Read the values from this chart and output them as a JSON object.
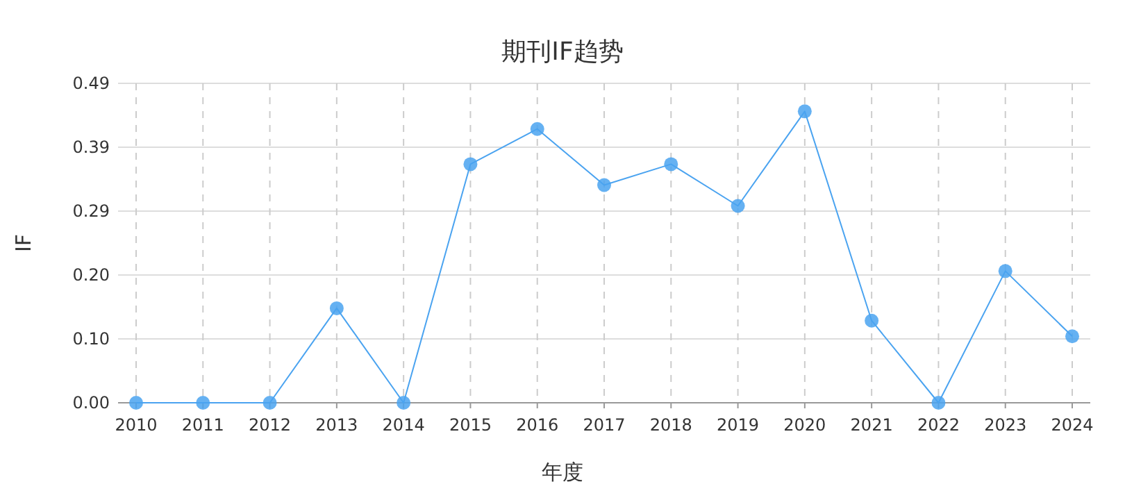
{
  "chart_data": {
    "type": "line",
    "title": "期刊IF趋势",
    "xlabel": "年度",
    "ylabel": "IF",
    "categories": [
      "2010",
      "2011",
      "2012",
      "2013",
      "2014",
      "2015",
      "2016",
      "2017",
      "2018",
      "2019",
      "2020",
      "2021",
      "2022",
      "2023",
      "2024"
    ],
    "series": [
      {
        "color": "#4aa3f0",
        "values": [
          0,
          0,
          0,
          0.145,
          0,
          0.366,
          0.42,
          0.334,
          0.366,
          0.302,
          0.447,
          0.126,
          0,
          0.202,
          0.102
        ]
      }
    ],
    "ylim": [
      0,
      0.49
    ],
    "yticks": [
      {
        "value": 0,
        "label": "0.00"
      },
      {
        "value": 0.098,
        "label": "0.10"
      },
      {
        "value": 0.196,
        "label": "0.20"
      },
      {
        "value": 0.294,
        "label": "0.29"
      },
      {
        "value": 0.392,
        "label": "0.39"
      },
      {
        "value": 0.49,
        "label": "0.49"
      }
    ],
    "grid": true,
    "marker": "circle",
    "line_style": "solid"
  }
}
